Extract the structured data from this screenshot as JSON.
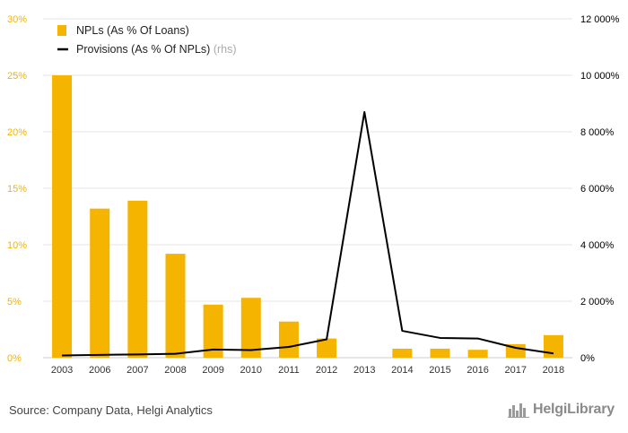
{
  "chart_data": {
    "type": "bar",
    "categories": [
      "2003",
      "2006",
      "2007",
      "2008",
      "2009",
      "2010",
      "2011",
      "2012",
      "2013",
      "2014",
      "2015",
      "2016",
      "2017",
      "2018"
    ],
    "series": [
      {
        "name": "NPLs (As % Of Loans)",
        "type": "bar",
        "axis": "left",
        "values": [
          25.0,
          13.2,
          13.9,
          9.2,
          4.7,
          5.3,
          3.2,
          1.7,
          null,
          0.8,
          0.8,
          0.7,
          1.2,
          2.0
        ]
      },
      {
        "name": "Provisions (As % Of NPLs)",
        "name_suffix": "(rhs)",
        "type": "line",
        "axis": "right",
        "values": [
          80,
          100,
          115,
          140,
          290,
          270,
          380,
          650,
          8700,
          950,
          700,
          680,
          350,
          150
        ]
      }
    ],
    "left_axis": {
      "ticks": [
        "0%",
        "5%",
        "10%",
        "15%",
        "20%",
        "25%",
        "30%"
      ],
      "min": 0,
      "max": 30
    },
    "right_axis": {
      "ticks": [
        "0%",
        "2 000%",
        "4 000%",
        "6 000%",
        "8 000%",
        "10 000%",
        "12 000%"
      ],
      "min": 0,
      "max": 12000
    },
    "grid": true,
    "legend_position": "top-left",
    "colors": {
      "bar": "#F5B400",
      "line": "#000000",
      "grid": "#e6e6e6"
    }
  },
  "footer": {
    "source": "Source: Company Data, Helgi Analytics",
    "brand": "HelgiLibrary"
  },
  "icons": {
    "brand_logo": "city-skyline-icon"
  }
}
